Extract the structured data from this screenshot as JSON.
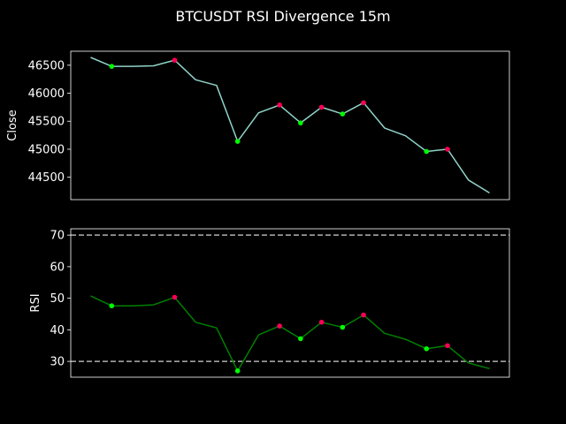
{
  "chart_data": [
    {
      "type": "line",
      "title": "BTCUSDT RSI Divergence 15m",
      "xlabel": "",
      "ylabel": "Close",
      "ylim": [
        44100,
        46750
      ],
      "yticks": [
        44500,
        45000,
        45500,
        46000,
        46500
      ],
      "grid": false,
      "line_color": "#8fd3c8",
      "x": [
        0,
        1,
        2,
        3,
        4,
        5,
        6,
        7,
        8,
        9,
        10,
        11,
        12,
        13,
        14,
        15,
        16,
        17,
        18,
        19
      ],
      "values": [
        46640,
        46480,
        46480,
        46490,
        46590,
        46240,
        46140,
        45140,
        45650,
        45790,
        45470,
        45750,
        45630,
        45830,
        45380,
        45240,
        44960,
        45000,
        44450,
        44220
      ],
      "markers_green": {
        "x": [
          1,
          7,
          10,
          12,
          16
        ],
        "values": [
          46480,
          45140,
          45470,
          45630,
          44960
        ],
        "color": "#00ff00"
      },
      "markers_red": {
        "x": [
          4,
          9,
          11,
          13,
          17
        ],
        "values": [
          46590,
          45790,
          45750,
          45830,
          45000
        ],
        "color": "#ff0055"
      }
    },
    {
      "type": "line",
      "xlabel": "",
      "ylabel": "RSI",
      "ylim": [
        25,
        72
      ],
      "yticks": [
        30,
        40,
        50,
        60,
        70
      ],
      "grid": false,
      "line_color": "#008000",
      "hlines": [
        {
          "y": 70,
          "color": "#b0b0b0",
          "style": "dashed"
        },
        {
          "y": 30,
          "color": "#b0b0b0",
          "style": "dashed"
        }
      ],
      "x": [
        0,
        1,
        2,
        3,
        4,
        5,
        6,
        7,
        8,
        9,
        10,
        11,
        12,
        13,
        14,
        15,
        16,
        17,
        18,
        19
      ],
      "values": [
        50.7,
        47.6,
        47.6,
        47.9,
        50.3,
        42.4,
        40.6,
        27.0,
        38.4,
        41.2,
        37.2,
        42.4,
        40.8,
        44.7,
        38.9,
        37.0,
        34.0,
        35.0,
        29.5,
        27.7
      ],
      "markers_green": {
        "x": [
          1,
          7,
          10,
          12,
          16
        ],
        "values": [
          47.6,
          27.0,
          37.2,
          40.8,
          34.0
        ],
        "color": "#00ff00"
      },
      "markers_red": {
        "x": [
          4,
          9,
          11,
          13,
          17
        ],
        "values": [
          50.3,
          41.2,
          42.4,
          44.7,
          35.0
        ],
        "color": "#ff0055"
      }
    }
  ]
}
